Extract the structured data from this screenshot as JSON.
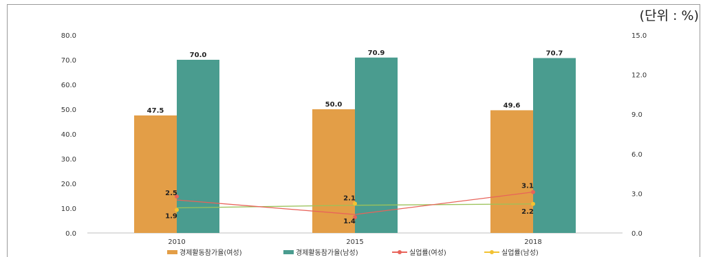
{
  "unit_label": "(단위 : %)",
  "colors": {
    "female_participation": "#E39E47",
    "male_participation": "#4A9C8F",
    "female_unemployment": "#E8635A",
    "male_unemployment": "#F2C232",
    "male_unemployment_line": "#9BC25A",
    "axis": "#bfbfbf"
  },
  "legend": [
    {
      "label": "경제활동참가율(여성)",
      "kind": "bar",
      "color_key": "female_participation"
    },
    {
      "label": "경제활동참가율(남성)",
      "kind": "bar",
      "color_key": "male_participation"
    },
    {
      "label": "실업률(여성)",
      "kind": "line",
      "color_key": "female_unemployment"
    },
    {
      "label": "실업률(남성)",
      "kind": "line",
      "color_key": "male_unemployment"
    }
  ],
  "chart_data": {
    "type": "bar",
    "categories": [
      "2010",
      "2015",
      "2018"
    ],
    "series": [
      {
        "name": "경제활동참가율(여성)",
        "type": "bar",
        "axis": "left",
        "values": [
          47.5,
          50.0,
          49.6
        ],
        "labels": [
          "47.5",
          "50.0",
          "49.6"
        ]
      },
      {
        "name": "경제활동참가율(남성)",
        "type": "bar",
        "axis": "left",
        "values": [
          70.0,
          70.9,
          70.7
        ],
        "labels": [
          "70.0",
          "70.9",
          "70.7"
        ]
      },
      {
        "name": "실업률(여성)",
        "type": "line",
        "axis": "right",
        "values": [
          2.5,
          1.4,
          3.1
        ],
        "labels": [
          "2.5",
          "1.4",
          "3.1"
        ]
      },
      {
        "name": "실업률(남성)",
        "type": "line",
        "axis": "right",
        "values": [
          1.9,
          2.1,
          2.2
        ],
        "labels": [
          "1.9",
          "2.1",
          "2.2"
        ]
      }
    ],
    "y_left": {
      "ylim": [
        0,
        80
      ],
      "ticks": [
        "0.0",
        "10.0",
        "20.0",
        "30.0",
        "40.0",
        "50.0",
        "60.0",
        "70.0",
        "80.0"
      ]
    },
    "y_right": {
      "ylim": [
        0,
        15
      ],
      "ticks": [
        "0.0",
        "3.0",
        "6.0",
        "9.0",
        "12.0",
        "15.0"
      ]
    },
    "grid": false,
    "legend_position": "bottom"
  }
}
